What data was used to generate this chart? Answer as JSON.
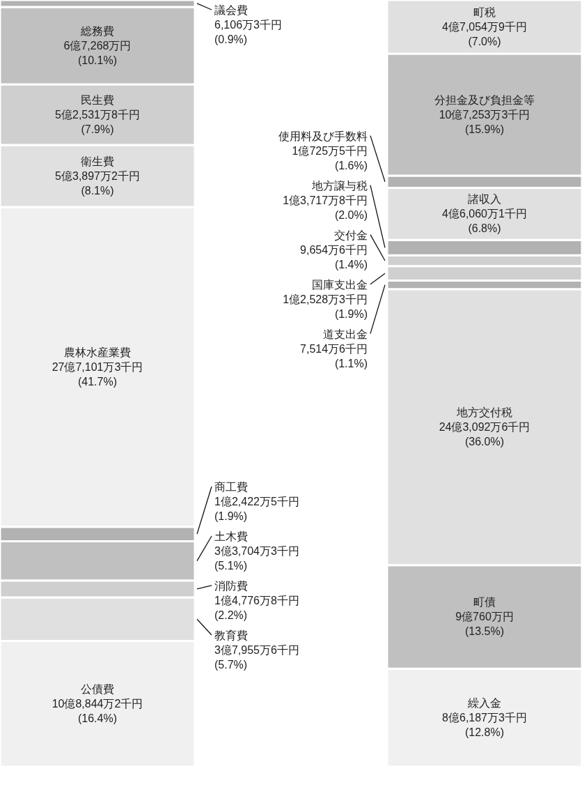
{
  "chart_data": {
    "type": "bar",
    "stacked": true,
    "categories": [
      null,
      null
    ],
    "series": [
      {
        "name": "公債費",
        "color": "#f0f0f0",
        "values": [
          16.4,
          null
        ],
        "value_labels": [
          "10億8,844万2千円\n(16.4%)",
          null
        ]
      },
      {
        "name": "教育費",
        "color": "#e0e0e0",
        "values": [
          5.7,
          null
        ],
        "value_labels": [
          "3億7,955万6千円\n(5.7%)",
          null
        ]
      },
      {
        "name": "消防費",
        "color": "#cfcfcf",
        "values": [
          2.2,
          null
        ],
        "value_labels": [
          "1億4,776万8千円\n(2.2%)",
          null
        ]
      },
      {
        "name": "土木費",
        "color": "#c0c0c0",
        "values": [
          5.1,
          null
        ],
        "value_labels": [
          "3億3,704万3千円\n(5.1%)",
          null
        ]
      },
      {
        "name": "商工費",
        "color": "#b2b2b2",
        "values": [
          1.9,
          null
        ],
        "value_labels": [
          "1億2,422万5千円\n(1.9%)",
          null
        ]
      },
      {
        "name": "農林水産業費",
        "color": "#f0f0f0",
        "values": [
          41.7,
          null
        ],
        "value_labels": [
          "27億7,101万3千円\n(41.7%)",
          null
        ]
      },
      {
        "name": "衛生費",
        "color": "#e0e0e0",
        "values": [
          8.1,
          null
        ],
        "value_labels": [
          "5億3,897万2千円\n(8.1%)",
          null
        ]
      },
      {
        "name": "民生費",
        "color": "#cfcfcf",
        "values": [
          7.9,
          null
        ],
        "value_labels": [
          "5億2,531万8千円\n(7.9%)",
          null
        ]
      },
      {
        "name": "総務費",
        "color": "#c0c0c0",
        "values": [
          10.1,
          null
        ],
        "value_labels": [
          "6億7,268万円\n(10.1%)",
          null
        ]
      },
      {
        "name": "議会費",
        "color": "#b2b2b2",
        "values": [
          0.9,
          null
        ],
        "value_labels": [
          "6,106万3千円\n(0.9%)",
          null
        ]
      },
      {
        "name": "繰入金",
        "color": "#f0f0f0",
        "values": [
          null,
          12.8
        ],
        "value_labels": [
          null,
          "8億6,187万3千円\n(12.8%)"
        ]
      },
      {
        "name": "町債",
        "color": "#c0c0c0",
        "values": [
          null,
          13.5
        ],
        "value_labels": [
          null,
          "9億760万円\n(13.5%)"
        ]
      },
      {
        "name": "地方交付税",
        "color": "#e0e0e0",
        "values": [
          null,
          36.0
        ],
        "value_labels": [
          null,
          "24億3,092万6千円\n(36.0%)"
        ]
      },
      {
        "name": "道支出金",
        "color": "#b2b2b2",
        "values": [
          null,
          1.1
        ],
        "value_labels": [
          null,
          "7,514万6千円\n(1.1%)"
        ]
      },
      {
        "name": "国庫支出金",
        "color": "#cfcfcf",
        "values": [
          null,
          1.9
        ],
        "value_labels": [
          null,
          "1億2,528万3千円\n(1.9%)"
        ]
      },
      {
        "name": "交付金",
        "color": "#cfcfcf",
        "values": [
          null,
          1.4
        ],
        "value_labels": [
          null,
          "9,654万6千円\n(1.4%)"
        ]
      },
      {
        "name": "地方譲与税",
        "color": "#b2b2b2",
        "values": [
          null,
          2.0
        ],
        "value_labels": [
          null,
          "1億3,717万8千円\n(2.0%)"
        ]
      },
      {
        "name": "諸収入",
        "color": "#e0e0e0",
        "values": [
          null,
          6.8
        ],
        "value_labels": [
          null,
          "4億6,060万1千円\n(6.8%)"
        ]
      },
      {
        "name": "使用料及び手数料",
        "color": "#b2b2b2",
        "values": [
          null,
          1.6
        ],
        "value_labels": [
          null,
          "1億725万5千円\n(1.6%)"
        ]
      },
      {
        "name": "分担金及び負担金等",
        "color": "#c0c0c0",
        "values": [
          null,
          15.9
        ],
        "value_labels": [
          null,
          "10億7,253万3千円\n(15.9%)"
        ]
      },
      {
        "name": "町税",
        "color": "#e0e0e0",
        "values": [
          null,
          7.0
        ],
        "value_labels": [
          null,
          "4億7,054万9千円\n(7.0%)"
        ]
      }
    ]
  }
}
